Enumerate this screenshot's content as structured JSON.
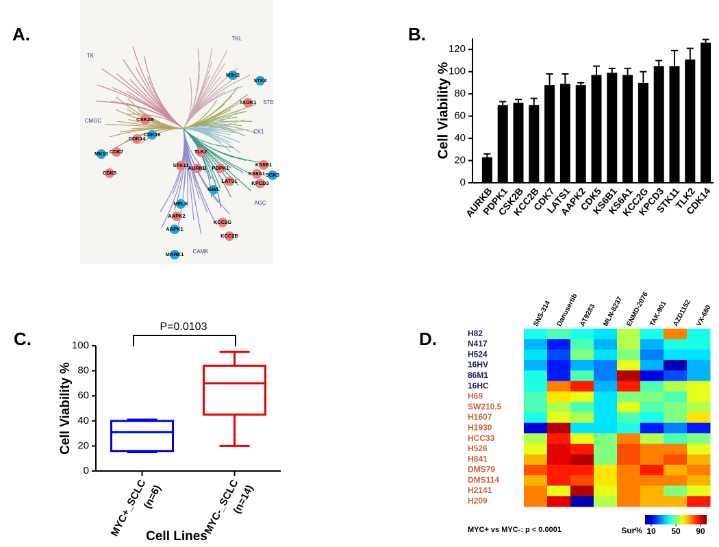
{
  "panel_labels": [
    "A.",
    "B.",
    "C.",
    "D."
  ],
  "kinome_tree": {
    "groups": [
      {
        "label": "TK",
        "color": "#c9899b"
      },
      {
        "label": "TKL",
        "color": "#c9a9b2"
      },
      {
        "label": "STE",
        "color": "#a6aa5a"
      },
      {
        "label": "CK1",
        "color": "#9cc1d0"
      },
      {
        "label": "AGC",
        "color": "#3f9c86"
      },
      {
        "label": "CAMK",
        "color": "#8d8ec6"
      },
      {
        "label": "CMGC",
        "color": "#b6a165"
      }
    ],
    "kinases": [
      {
        "label": "M3K2",
        "color": "#1fa7dc"
      },
      {
        "label": "STK4",
        "color": "#1fa7dc"
      },
      {
        "label": "TAOK1",
        "color": "#ef7f7f"
      },
      {
        "label": "CSK2B",
        "color": "#ef7f7f"
      },
      {
        "label": "CDK16",
        "color": "#1fa7dc"
      },
      {
        "label": "CDK14",
        "color": "#ef7f7f"
      },
      {
        "label": "CDK7",
        "color": "#ef7f7f"
      },
      {
        "label": "MK10",
        "color": "#1fa7dc"
      },
      {
        "label": "CDK5",
        "color": "#ef7f7f"
      },
      {
        "label": "TLK2",
        "color": "#ef7f7f"
      },
      {
        "label": "STK11",
        "color": "#ef7f7f"
      },
      {
        "label": "AURKB",
        "color": "#ef7f7f"
      },
      {
        "label": "PDPK1",
        "color": "#ef7f7f"
      },
      {
        "label": "KS6B1",
        "color": "#ef7f7f"
      },
      {
        "label": "KS6A1",
        "color": "#ef7f7f"
      },
      {
        "label": "SGK3",
        "color": "#1fa7dc"
      },
      {
        "label": "LATS1",
        "color": "#ef7f7f"
      },
      {
        "label": "KPCD3",
        "color": "#ef7f7f"
      },
      {
        "label": "GWL",
        "color": "#1fa7dc"
      },
      {
        "label": "MELK",
        "color": "#1fa7dc"
      },
      {
        "label": "AAPK2",
        "color": "#ef7f7f"
      },
      {
        "label": "AAPK1",
        "color": "#1fa7dc"
      },
      {
        "label": "KCC2G",
        "color": "#ef7f7f"
      },
      {
        "label": "KCC2B",
        "color": "#ef7f7f"
      },
      {
        "label": "MARK1",
        "color": "#1fa7dc"
      }
    ]
  },
  "chart_data": [
    {
      "type": "bar",
      "y_label": "Cell Viability %",
      "color": "#000000",
      "categories": [
        "AURKB",
        "PDPK1",
        "CSK2B",
        "KCC2B",
        "CDK7",
        "LATS1",
        "AAPK2",
        "CDK5",
        "KS6B1",
        "KS6A1",
        "KCC2G",
        "KPCD3",
        "STK11",
        "TLK2",
        "CDK14"
      ],
      "values": [
        23,
        70,
        72,
        70,
        88,
        89,
        88,
        97,
        99,
        97,
        90,
        105,
        105,
        111,
        126
      ],
      "errors": [
        3,
        3,
        3,
        6,
        10,
        9,
        2,
        8,
        4,
        6,
        10,
        5,
        14,
        10,
        3
      ],
      "ylim": [
        0,
        130
      ],
      "yticks": [
        0,
        20,
        40,
        60,
        80,
        100,
        120
      ]
    },
    {
      "type": "box",
      "y_label": "Cell Viability %",
      "x_label": "Cell Lines",
      "annotation": "P=0.0103",
      "categories": [
        "MYC+_SCLC",
        "MYC-_SCLC"
      ],
      "category_sublabels": [
        "(n=6)",
        "(n=14)"
      ],
      "colors": [
        "#0000ee",
        "#ee0000"
      ],
      "min": [
        15,
        20
      ],
      "q1": [
        16,
        45
      ],
      "median": [
        31,
        70
      ],
      "q3": [
        40,
        84
      ],
      "max": [
        41,
        95
      ],
      "ylim": [
        0,
        100
      ],
      "yticks": [
        0,
        20,
        40,
        60,
        80,
        100
      ]
    },
    {
      "type": "heatmap",
      "annotation": "MYC+ vs MYC-: p < 0.0001",
      "colorbar_label": "Sur%",
      "x": [
        "SNS-314",
        "Danusertib",
        "AT9283",
        "MLN-8237",
        "ENMD-2076",
        "TAK-901",
        "AZD1152",
        "VX-680"
      ],
      "y": [
        "H82",
        "N417",
        "H524",
        "16HV",
        "86M1",
        "16HC",
        "H69",
        "SW210.5",
        "H1607",
        "H1930",
        "HCC33",
        "H526",
        "H841",
        "DMS79",
        "DMS114",
        "H2141",
        "H209"
      ],
      "y_label_colors": [
        "#1c1c5c",
        "#1c1c5c",
        "#1c1c5c",
        "#1c1c5c",
        "#1c1c5c",
        "#1c1c5c",
        "#d2603a",
        "#d2603a",
        "#d2603a",
        "#d2603a",
        "#d2603a",
        "#d2603a",
        "#d2603a",
        "#d2603a",
        "#d2603a",
        "#d2603a",
        "#d2603a"
      ],
      "values": [
        [
          40,
          45,
          40,
          35,
          55,
          40,
          75,
          40
        ],
        [
          30,
          15,
          45,
          30,
          55,
          30,
          40,
          40
        ],
        [
          35,
          20,
          50,
          35,
          50,
          25,
          35,
          35
        ],
        [
          30,
          15,
          30,
          25,
          60,
          30,
          5,
          30
        ],
        [
          40,
          15,
          45,
          25,
          95,
          10,
          20,
          30
        ],
        [
          40,
          75,
          85,
          30,
          85,
          45,
          55,
          60
        ],
        [
          45,
          65,
          60,
          35,
          50,
          50,
          45,
          60
        ],
        [
          45,
          55,
          45,
          35,
          60,
          45,
          50,
          55
        ],
        [
          40,
          60,
          55,
          35,
          45,
          40,
          50,
          65
        ],
        [
          10,
          95,
          35,
          35,
          40,
          15,
          25,
          15
        ],
        [
          55,
          85,
          60,
          50,
          75,
          55,
          45,
          50
        ],
        [
          60,
          90,
          85,
          50,
          80,
          75,
          75,
          60
        ],
        [
          70,
          90,
          95,
          50,
          80,
          75,
          80,
          70
        ],
        [
          80,
          85,
          85,
          65,
          75,
          85,
          70,
          75
        ],
        [
          70,
          85,
          80,
          65,
          75,
          75,
          75,
          70
        ],
        [
          75,
          60,
          95,
          60,
          75,
          70,
          50,
          60
        ],
        [
          75,
          90,
          5,
          55,
          75,
          70,
          70,
          85
        ]
      ],
      "zlim": [
        0,
        100
      ],
      "zticks": [
        10,
        50,
        90
      ]
    }
  ]
}
